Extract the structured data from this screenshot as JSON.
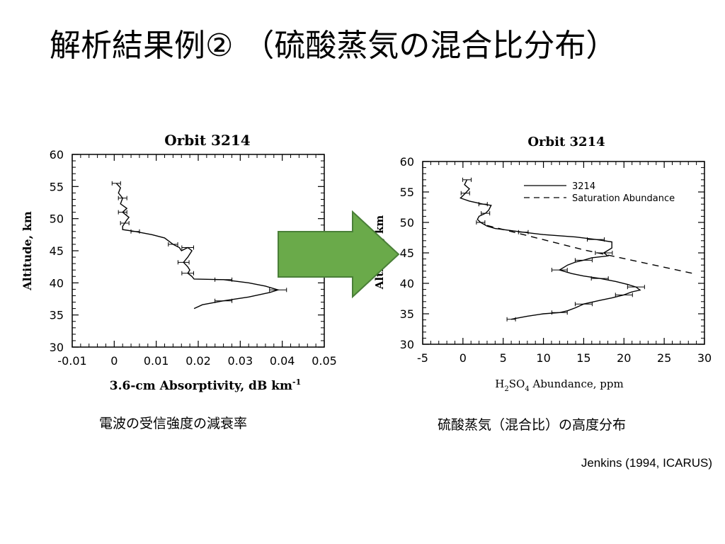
{
  "slide": {
    "title": "解析結果例② （硫酸蒸気の混合比分布）",
    "caption_left": "電波の受信強度の減衰率",
    "caption_right": "硫酸蒸気（混合比）の高度分布",
    "citation": "Jenkins (1994, ICARUS)"
  },
  "accent_colors": {
    "arrow_fill": "#6aaa4a",
    "arrow_stroke": "#4a7f38"
  },
  "chart_data": [
    {
      "type": "line",
      "title": "Orbit 3214",
      "xlabel_main": "3.6-cm Absorptivity, dB km",
      "xlabel_sup": "-1",
      "ylabel": "Altitude, km",
      "xlim": [
        -0.01,
        0.05
      ],
      "ylim": [
        30,
        60
      ],
      "xticks": [
        "-0.01",
        "0",
        "0.01",
        "0.02",
        "0.03",
        "0.04",
        "0.05"
      ],
      "yticks": [
        "30",
        "35",
        "40",
        "45",
        "50",
        "55",
        "60"
      ],
      "grid": false,
      "series": [
        {
          "x": [
            0.0005,
            0.0015,
            0.001,
            0.002,
            0.0015,
            0.003,
            0.002,
            0.0035,
            0.003,
            0.0025,
            0.002,
            0.002,
            0.005,
            0.009,
            0.012,
            0.014,
            0.0155,
            0.016,
            0.0175,
            0.0185,
            0.0175,
            0.0165,
            0.0175,
            0.018,
            0.0175,
            0.0185,
            0.019,
            0.026,
            0.032,
            0.036,
            0.039,
            0.037,
            0.032,
            0.026,
            0.021,
            0.019
          ],
          "y": [
            55.5,
            54.8,
            54,
            53.2,
            52.3,
            51.6,
            51,
            50.2,
            49.8,
            49.3,
            48.8,
            48.3,
            48,
            47.5,
            47,
            46,
            45.5,
            45,
            45.5,
            45,
            44,
            43.2,
            42.5,
            42,
            41.5,
            41,
            40.6,
            40.5,
            40,
            39.5,
            38.9,
            38.5,
            37.8,
            37.2,
            36.6,
            36
          ]
        }
      ]
    },
    {
      "type": "line",
      "title": "Orbit 3214",
      "xlabel_main": "H",
      "xlabel_sub1": "2",
      "xlabel_mid": "SO",
      "xlabel_sub2": "4",
      "xlabel_end": " Abundance, ppm",
      "ylabel": "Altitude, km",
      "xlim": [
        -5,
        30
      ],
      "ylim": [
        30,
        60
      ],
      "xticks": [
        "-5",
        "0",
        "5",
        "10",
        "15",
        "20",
        "25",
        "30"
      ],
      "yticks": [
        "30",
        "35",
        "40",
        "45",
        "50",
        "55",
        "60"
      ],
      "grid": false,
      "legend_position": "top-right",
      "series": [
        {
          "name": "3214",
          "style": "solid",
          "x": [
            0.5,
            0.2,
            0.8,
            0.3,
            -0.3,
            0.8,
            2.5,
            3.5,
            3.2,
            2.8,
            2.0,
            1.8,
            2.2,
            3.0,
            4.0,
            7.5,
            10.0,
            14.0,
            16.5,
            18.5,
            18.5,
            17.5,
            18.0,
            16.0,
            15.0,
            14.0,
            13.0,
            12.0,
            13.5,
            15.0,
            17.0,
            19.0,
            20.5,
            21.5,
            22.0,
            21.0,
            20.0,
            18.5,
            17.0,
            15.0,
            14.0,
            13.0,
            12.0,
            10.0,
            8.0,
            6.0
          ],
          "y": [
            57,
            56.2,
            55.5,
            54.8,
            54,
            53.5,
            53,
            52.8,
            52,
            51.5,
            51,
            50.5,
            50,
            49.4,
            49,
            48.4,
            48,
            47.6,
            47.2,
            46.8,
            45.8,
            45,
            44.5,
            44.2,
            43.8,
            43.5,
            43,
            42.2,
            41.6,
            41.2,
            40.8,
            40.3,
            39.8,
            39.4,
            38.9,
            38.6,
            38.1,
            37.6,
            37.2,
            36.6,
            36.0,
            35.5,
            35.2,
            35,
            34.6,
            34.1
          ]
        },
        {
          "name": "Saturation Abundance",
          "style": "dashed",
          "x": [
            3.0,
            15.0,
            29.0
          ],
          "y": [
            49.5,
            45.5,
            41.5
          ]
        }
      ]
    }
  ]
}
